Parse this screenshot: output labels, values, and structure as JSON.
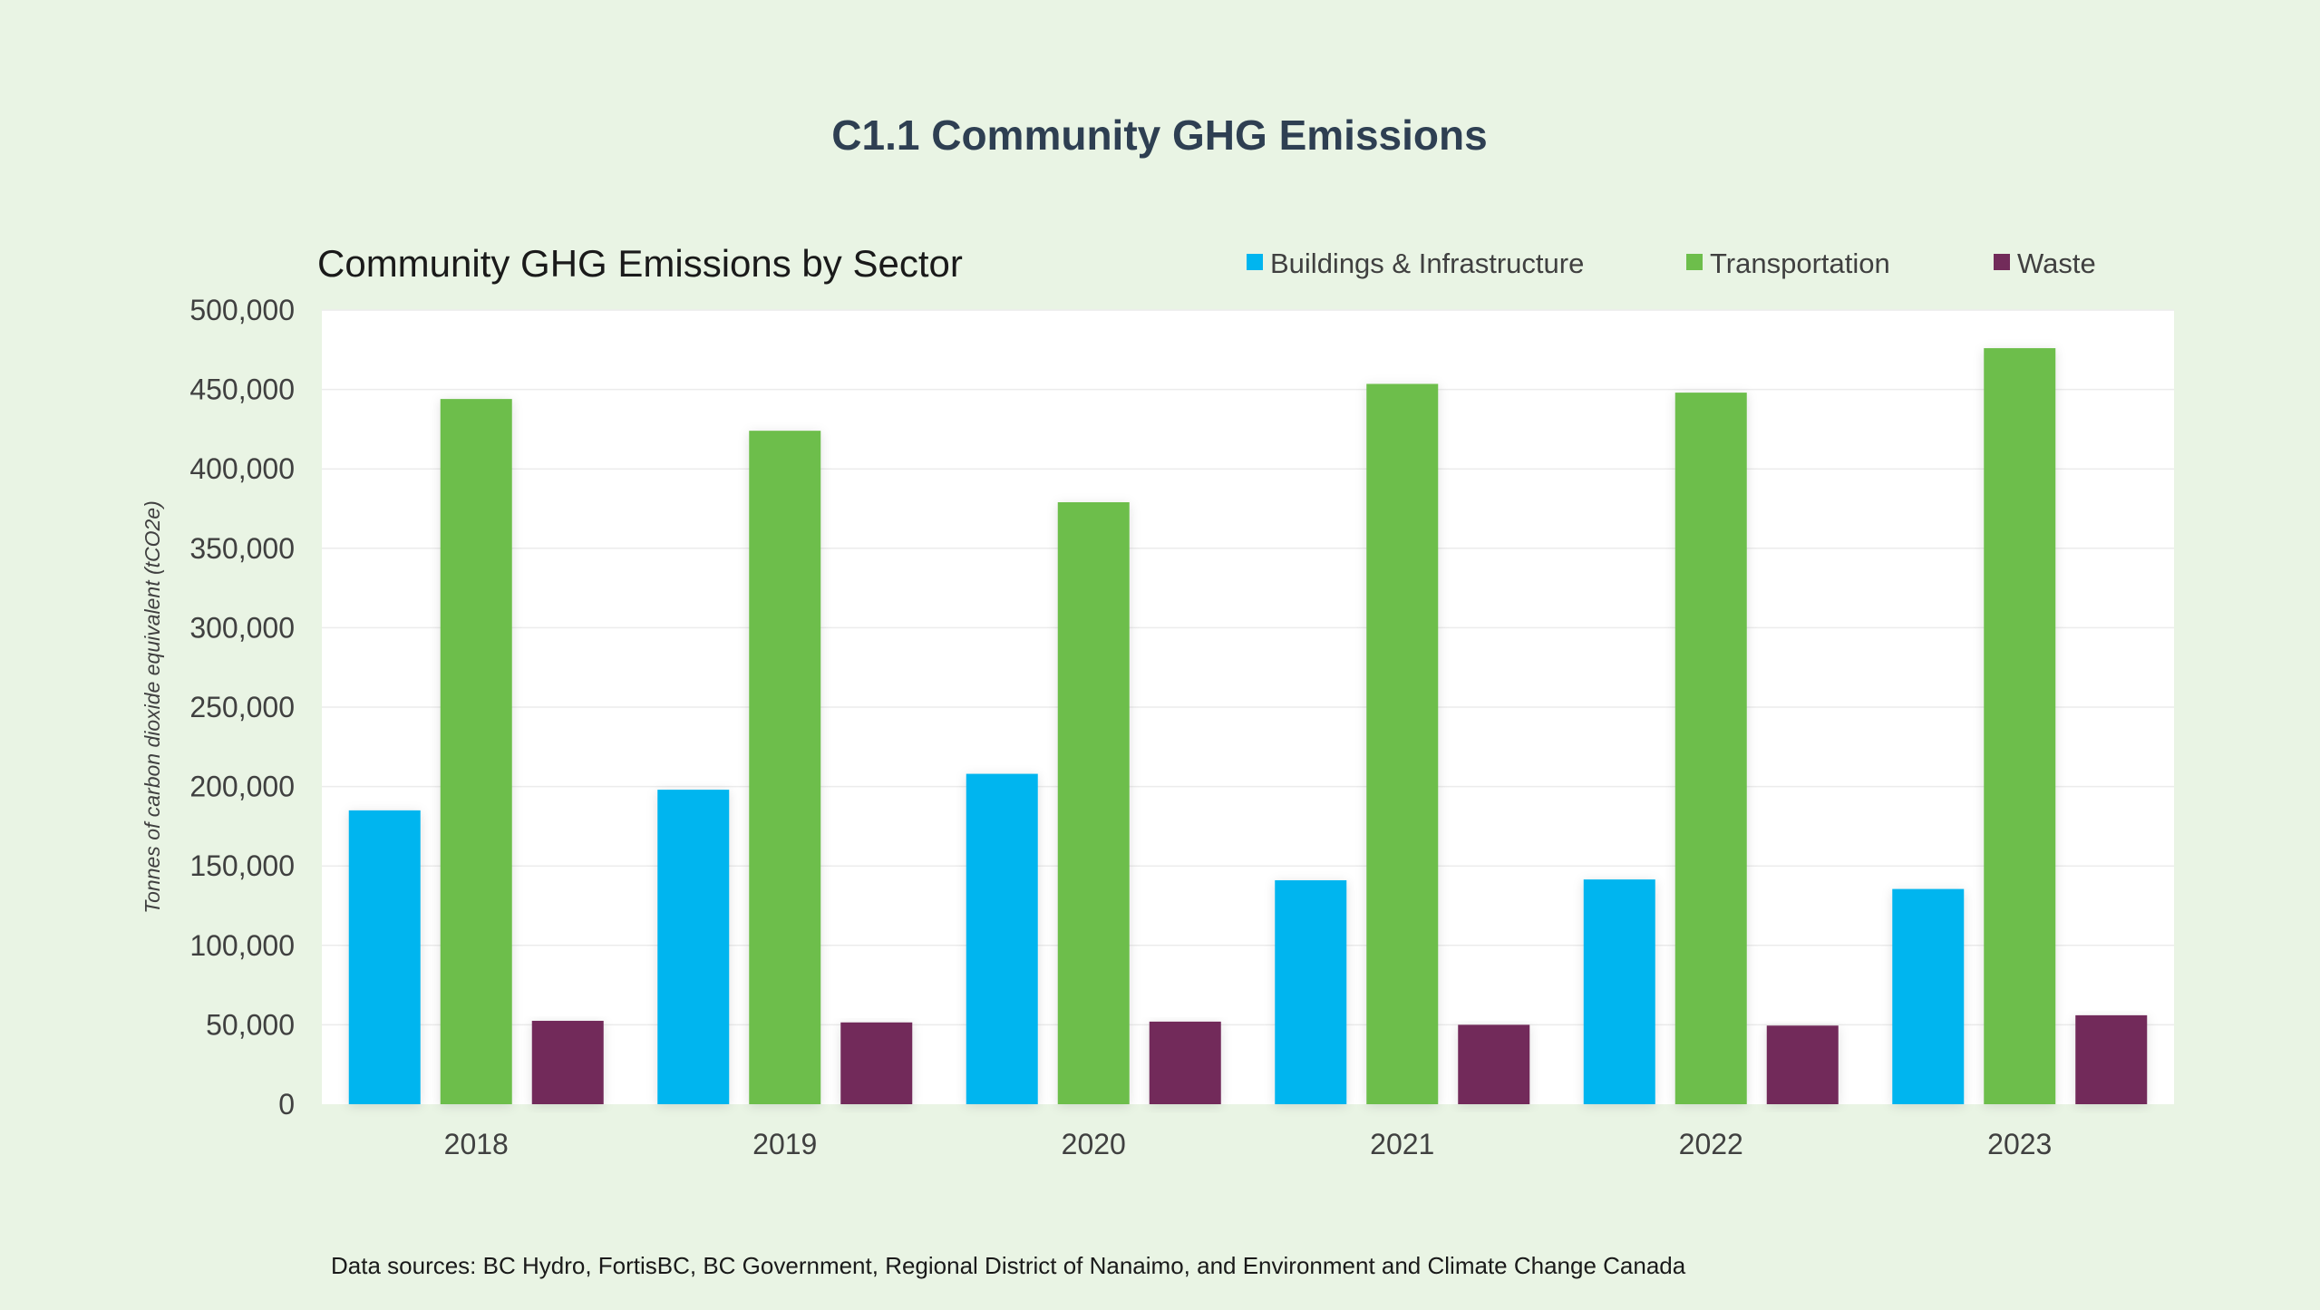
{
  "page": {
    "title": "C1.1 Community GHG Emissions",
    "footnote": "Data sources: BC Hydro, FortisBC, BC Government, Regional District of Nanaimo, and Environment and Climate Change Canada"
  },
  "colors": {
    "background": "#e9f4e4",
    "plot_background": "#ffffff",
    "title": "#2e3f52",
    "text": "#1a1a1a",
    "axis_text": "#404040",
    "gridline": "#ececec"
  },
  "chart_data": {
    "type": "bar",
    "title": "Community GHG Emissions by Sector",
    "xlabel": "",
    "ylabel": "Tonnes of carbon dioxide equivalent (tCO2e)",
    "ylim": [
      0,
      500000
    ],
    "ytick_step": 50000,
    "yticks": [
      "0",
      "50,000",
      "100,000",
      "150,000",
      "200,000",
      "250,000",
      "300,000",
      "350,000",
      "400,000",
      "450,000",
      "500,000"
    ],
    "categories": [
      "2018",
      "2019",
      "2020",
      "2021",
      "2022",
      "2023"
    ],
    "grid": true,
    "legend_position": "top-right",
    "series": [
      {
        "name": "Buildings & Infrastructure",
        "color": "#00b5ef",
        "values": [
          185000,
          198000,
          208000,
          141000,
          141500,
          135500
        ]
      },
      {
        "name": "Transportation",
        "color": "#6dbe4b",
        "values": [
          444000,
          424000,
          379000,
          453500,
          448000,
          476000
        ]
      },
      {
        "name": "Waste",
        "color": "#722b5a",
        "values": [
          52500,
          51500,
          52000,
          50000,
          49500,
          56000
        ]
      }
    ]
  }
}
